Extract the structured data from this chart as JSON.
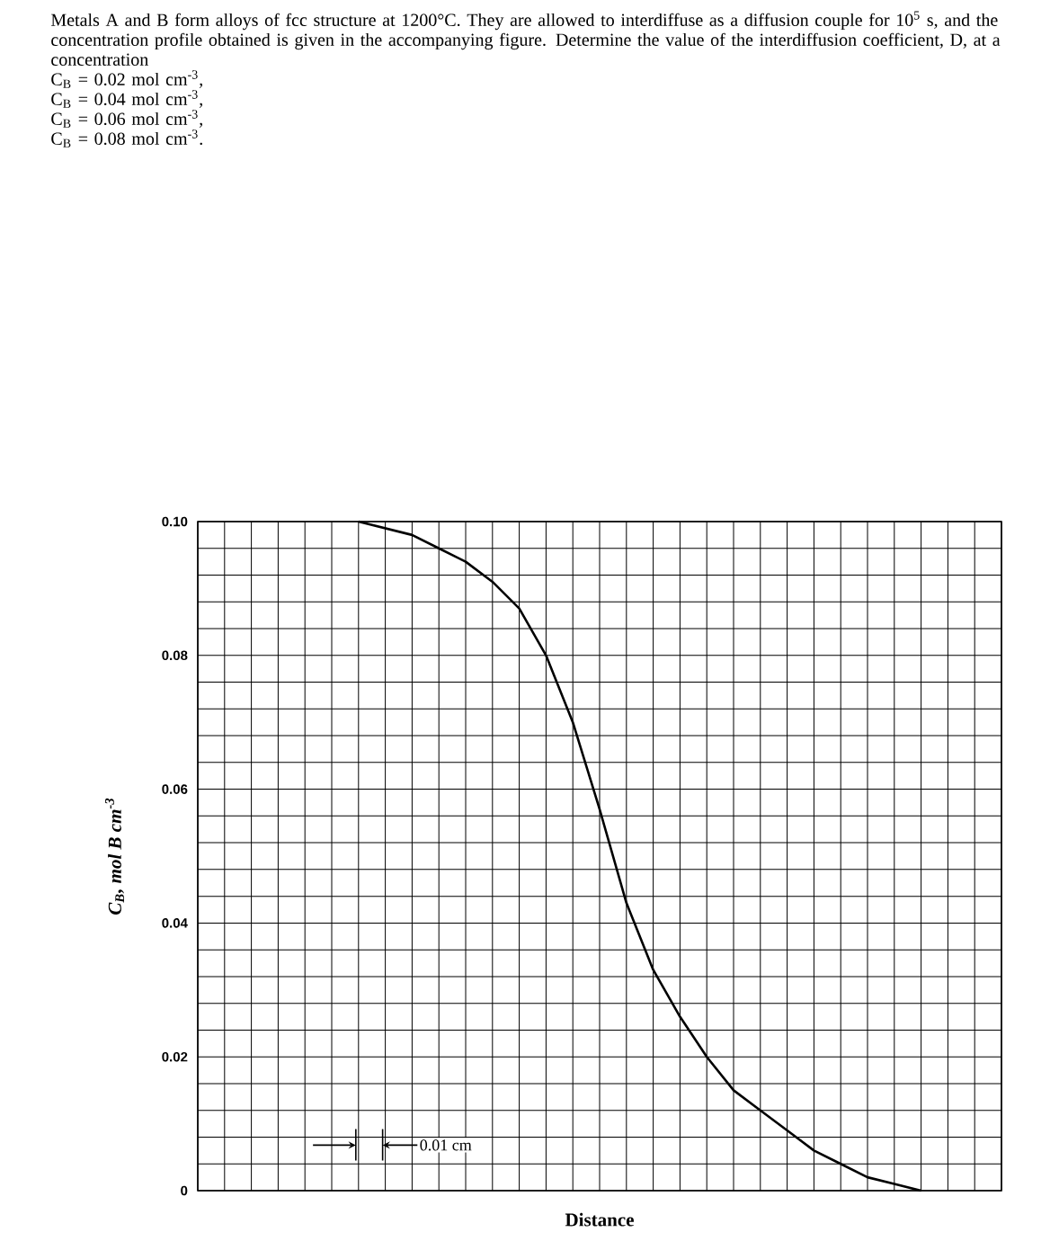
{
  "chart_data": {
    "type": "line",
    "title": "Metals A and B form alloys of fcc structure at 1200°C. They are allowed to interdiffuse as a diffusion couple for 10$^{5}$ s, and the concentration profile obtained is given in the accompanying figure. Determine the value of the interdiffusion coefficient, D, at a concentration",
    "annotations": [
      "C$_{B}$ = 0.02 mol cm$^{-3}$,",
      "C$_{B}$ = 0.04 mol cm$^{-3}$,",
      "C$_{B}$ = 0.06 mol cm$^{-3}$,",
      "C$_{B}$ = 0.08 mol cm$^{-3}$.",
      "0.01 cm"
    ],
    "xlabel": "Distance",
    "ylabel": "C$_{B}$, mol B cm$^{-3}$",
    "categories": [
      null,
      null,
      null,
      null,
      null,
      null,
      null,
      null,
      null,
      null,
      null,
      null,
      null,
      null,
      null,
      null,
      null,
      null,
      null,
      null,
      null,
      null,
      null,
      null,
      null,
      null,
      null,
      null,
      null,
      null,
      null
    ],
    "series": [
      {
        "color": "#000000",
        "values": [
          null,
          null,
          null,
          null,
          null,
          null,
          0.1,
          0.099,
          0.098,
          0.096,
          0.094,
          0.091,
          0.087,
          0.08,
          0.07,
          0.057,
          0.043,
          0.033,
          0.026,
          0.02,
          0.015,
          0.012,
          0.009,
          0.006,
          0.004,
          0.002,
          0.001,
          0.0,
          null,
          null,
          null
        ]
      }
    ],
    "ylim": [
      0,
      0.1
    ],
    "yticks": [
      0,
      {
        "value": 0.004,
        "label": null
      },
      {
        "value": 0.008,
        "label": null
      },
      {
        "value": 0.012,
        "label": null
      },
      {
        "value": 0.016,
        "label": null
      },
      0.02,
      {
        "value": 0.024,
        "label": null
      },
      {
        "value": 0.028,
        "label": null
      },
      {
        "value": 0.032,
        "label": null
      },
      {
        "value": 0.036,
        "label": null
      },
      0.04,
      {
        "value": 0.044,
        "label": null
      },
      {
        "value": 0.048,
        "label": null
      },
      {
        "value": 0.052,
        "label": null
      },
      {
        "value": 0.056,
        "label": null
      },
      0.06,
      {
        "value": 0.064,
        "label": null
      },
      {
        "value": 0.068,
        "label": null
      },
      {
        "value": 0.072,
        "label": null
      },
      {
        "value": 0.076,
        "label": null
      },
      0.08,
      {
        "value": 0.084,
        "label": null
      },
      {
        "value": 0.088,
        "label": null
      },
      {
        "value": 0.092,
        "label": null
      },
      {
        "value": 0.096,
        "label": null
      },
      {
        "value": 0.1,
        "label": "0.10"
      }
    ],
    "grid": true
  }
}
